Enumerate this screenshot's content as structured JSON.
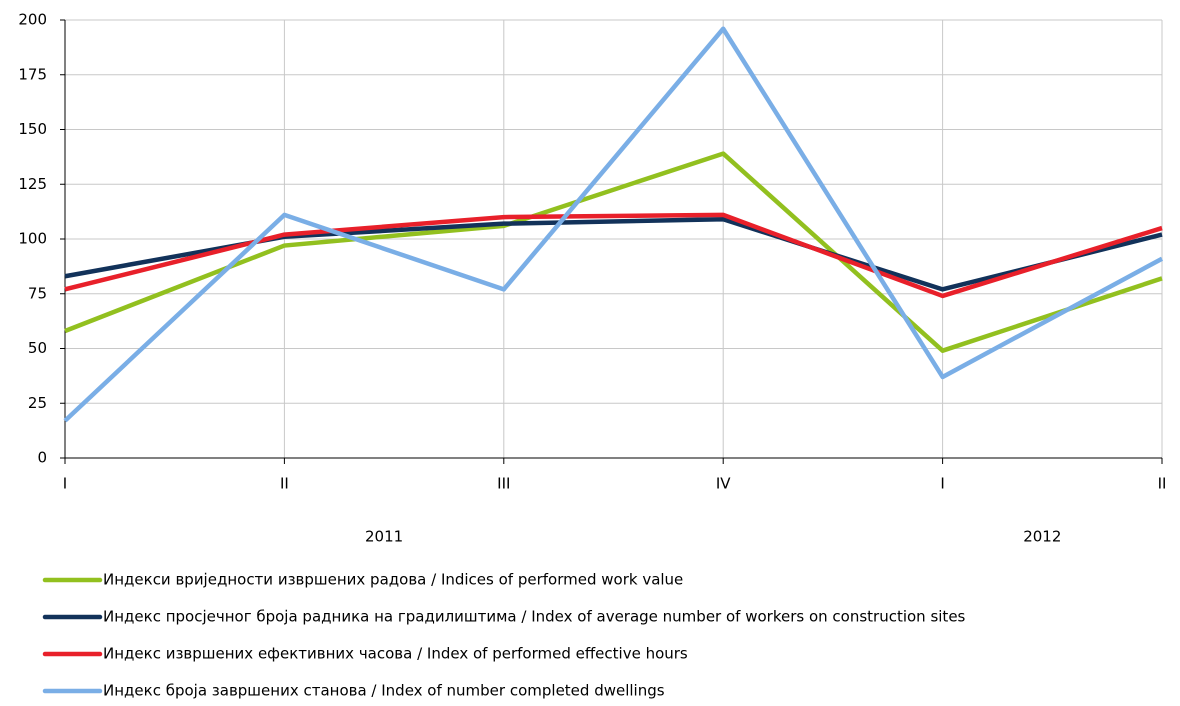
{
  "chart_data": {
    "type": "line",
    "categories": [
      "I",
      "II",
      "III",
      "IV",
      "I",
      "II"
    ],
    "category_groups": [
      "2011",
      "2011",
      "2011",
      "2011",
      "2012",
      "2012"
    ],
    "series": [
      {
        "name": "Индекси вриједности извршених радова / Indices of performed work value",
        "color": "#92c01f",
        "values": [
          58,
          97,
          106,
          139,
          49,
          82
        ]
      },
      {
        "name": "Индекс просјечног броја радника на градилиштима / Index of average number of workers on construction sites",
        "color": "#12325a",
        "values": [
          83,
          101,
          107,
          109,
          77,
          102
        ]
      },
      {
        "name": "Индекс извршених ефективних часова / Index of performed effective hours",
        "color": "#e8202a",
        "values": [
          77,
          102,
          110,
          111,
          74,
          105
        ]
      },
      {
        "name": "Индекс броја завршених станова / Index of number completed dwellings",
        "color": "#7aaee6",
        "values": [
          17,
          111,
          77,
          196,
          37,
          91
        ]
      }
    ],
    "ylim": [
      0,
      200
    ],
    "yticks": [
      0,
      25,
      50,
      75,
      100,
      125,
      150,
      175,
      200
    ],
    "grid": true,
    "legend": "bottom"
  }
}
